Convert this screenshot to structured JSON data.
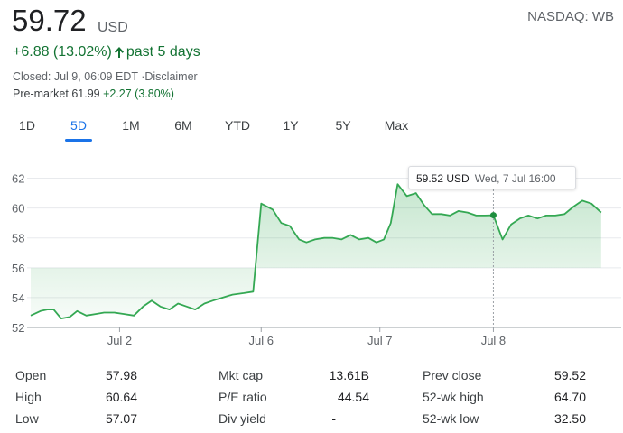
{
  "quote": {
    "price": "59.72",
    "currency": "USD",
    "exchange": "NASDAQ: WB",
    "change": "+6.88 (13.02%)",
    "period": "past 5 days",
    "closed": "Closed: Jul 9, 06:09 EDT ·Disclaimer",
    "premarket_label": "Pre-market",
    "premarket_price": "61.99",
    "premarket_change": "+2.27 (3.80%)",
    "colors": {
      "positive": "#137333",
      "line": "#34a853",
      "accent": "#1a73e8"
    },
    "arrow_icon": "arrow-up-icon"
  },
  "tabs": [
    {
      "label": "1D"
    },
    {
      "label": "5D",
      "active": true
    },
    {
      "label": "1M"
    },
    {
      "label": "6M"
    },
    {
      "label": "YTD"
    },
    {
      "label": "1Y"
    },
    {
      "label": "5Y"
    },
    {
      "label": "Max"
    }
  ],
  "tooltip": {
    "value": "59.52 USD",
    "time": "Wed, 7 Jul 16:00"
  },
  "chart_data": {
    "type": "area",
    "ylim": [
      52,
      63
    ],
    "yticks": [
      52,
      54,
      56,
      58,
      60,
      62
    ],
    "xlim": [
      0,
      100
    ],
    "xticks": [
      {
        "label": "Jul 2",
        "x": 15.5
      },
      {
        "label": "Jul 6",
        "x": 40.2
      },
      {
        "label": "Jul 7",
        "x": 60.9
      },
      {
        "label": "Jul 8",
        "x": 80.7
      }
    ],
    "fill_baseline": 56,
    "grid": true,
    "series": [
      {
        "x": [
          0,
          1.7,
          2.9,
          4.0,
          5.3,
          6.8,
          8.1,
          9.7,
          11.3,
          12.8,
          14.6,
          16.3,
          18.0,
          19.6,
          21.1,
          22.6,
          24.2,
          25.7,
          27.2,
          28.7,
          30.3,
          31.8,
          33.5,
          35.2,
          37.2,
          38.8,
          40.2,
          42.2,
          43.7,
          45.2,
          46.8,
          48.1,
          49.6,
          51.2,
          52.7,
          54.2,
          55.8,
          57.3,
          58.9,
          60.3,
          61.6,
          62.8,
          64.0,
          65.6,
          67.2,
          68.6,
          70.0,
          71.6,
          73.1,
          74.6,
          76.2,
          77.7,
          79.2,
          80.7,
          82.3,
          83.8,
          85.3,
          86.8,
          88.4,
          89.9,
          91.5,
          93.1,
          94.7,
          96.2,
          97.8,
          99.5
        ],
        "y": [
          52.8,
          53.1,
          53.2,
          53.2,
          52.6,
          52.7,
          53.1,
          52.8,
          52.9,
          53.0,
          53.0,
          52.9,
          52.8,
          53.4,
          53.8,
          53.4,
          53.2,
          53.6,
          53.4,
          53.2,
          53.6,
          53.8,
          54.0,
          54.2,
          54.3,
          54.4,
          60.3,
          59.9,
          59.0,
          58.8,
          57.9,
          57.7,
          57.9,
          58.0,
          58.0,
          57.9,
          58.2,
          57.9,
          58.0,
          57.7,
          57.9,
          59.0,
          61.6,
          60.8,
          61.0,
          60.2,
          59.6,
          59.6,
          59.5,
          59.8,
          59.7,
          59.5,
          59.5,
          59.52,
          57.9,
          58.9,
          59.3,
          59.5,
          59.3,
          59.5,
          59.5,
          59.6,
          60.1,
          60.5,
          60.3,
          59.7
        ]
      }
    ],
    "hover": {
      "x": 80.7,
      "y": 59.52
    }
  },
  "stats": [
    {
      "label": "Open",
      "value": "57.98"
    },
    {
      "label": "High",
      "value": "60.64"
    },
    {
      "label": "Low",
      "value": "57.07"
    },
    {
      "label": "Mkt cap",
      "value": "13.61B"
    },
    {
      "label": "P/E ratio",
      "value": "44.54"
    },
    {
      "label": "Div yield",
      "value": "-"
    },
    {
      "label": "Prev close",
      "value": "59.52"
    },
    {
      "label": "52-wk high",
      "value": "64.70"
    },
    {
      "label": "52-wk low",
      "value": "32.50"
    }
  ]
}
